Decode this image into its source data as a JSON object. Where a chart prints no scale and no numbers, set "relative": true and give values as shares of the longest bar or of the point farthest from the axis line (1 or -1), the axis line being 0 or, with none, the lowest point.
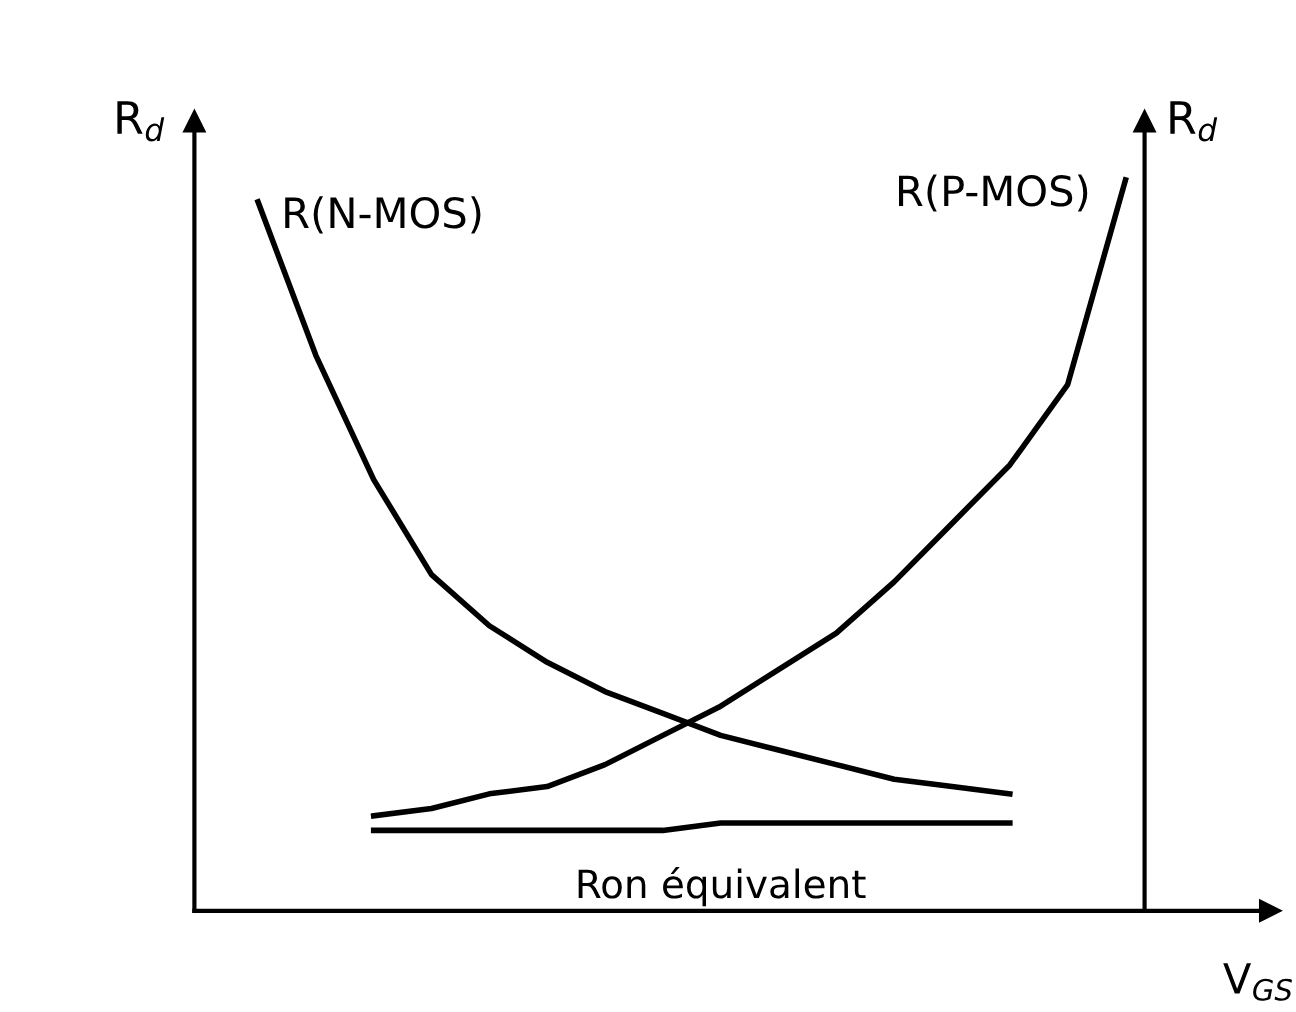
{
  "chart_data": {
    "type": "line",
    "relative": true,
    "ylabel": "R$_{d}$",
    "y2label": "R$_{d}$",
    "xlabel": "V$_{GS}$",
    "categories": [
      null,
      null,
      null,
      null,
      null,
      null,
      null,
      null,
      null,
      null,
      null,
      null,
      null,
      null,
      null,
      null
    ],
    "series": [
      {
        "name": "R(N-MOS)",
        "color": "#000000",
        "values": [
          0.97,
          0.76,
          0.59,
          0.46,
          0.39,
          0.34,
          0.3,
          0.27,
          0.24,
          0.22,
          0.2,
          0.18,
          0.17,
          0.16,
          null,
          null
        ]
      },
      {
        "name": "R(P-MOS)",
        "color": "#000000",
        "values": [
          null,
          null,
          0.13,
          0.14,
          0.16,
          0.17,
          0.2,
          0.24,
          0.28,
          0.33,
          0.38,
          0.45,
          0.53,
          0.61,
          0.72,
          1.0
        ]
      },
      {
        "name": "Ron équivalent",
        "color": "#000000",
        "values": [
          null,
          null,
          0.11,
          0.11,
          0.11,
          0.11,
          0.11,
          0.11,
          0.12,
          0.12,
          0.12,
          0.12,
          0.12,
          0.12,
          null,
          null
        ]
      }
    ],
    "legend": false,
    "grid": false,
    "marker": "none",
    "line_style": "solid"
  }
}
